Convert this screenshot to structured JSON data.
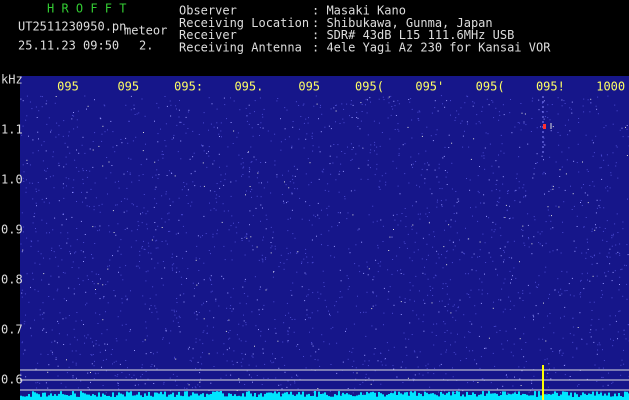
{
  "header": {
    "app": "H R O F F T",
    "file": "UT2511230950.pn",
    "tag": "meteor",
    "datetime": "25.11.23 09:50",
    "count": "2."
  },
  "info": [
    {
      "label": "Observer",
      "value": ": Masaki Kano"
    },
    {
      "label": "Receiving Location",
      "value": ": Shibukawa, Gunma, Japan"
    },
    {
      "label": "Receiver",
      "value": ": SDR# 43dB L15 111.6MHz USB"
    },
    {
      "label": "Receiving Antenna",
      "value": ": 4ele Yagi Az 230 for Kansai VOR"
    }
  ],
  "x_axis": {
    "labels": [
      "095",
      "095",
      "095:",
      "095.",
      "095",
      "095(",
      "095'",
      "095(",
      "095!",
      "1000"
    ]
  },
  "y_axis": {
    "unit": "kHz",
    "labels": [
      "1.1",
      "1.0",
      "0.9",
      "0.8",
      "0.7",
      "0.6"
    ]
  }
}
